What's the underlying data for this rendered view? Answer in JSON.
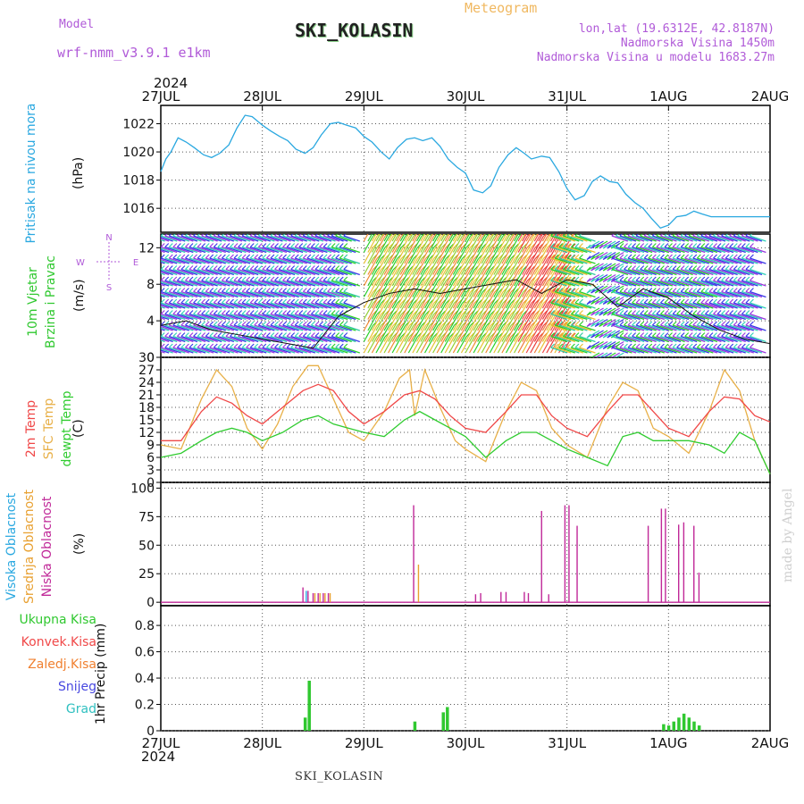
{
  "header": {
    "model_label": "Model",
    "model_name": "wrf-nmm_v3.9.1  e1km",
    "product": "Meteogram",
    "station": "SKI_KOLASIN",
    "location_line": "lon,lat (19.6312E, 42.8187N)",
    "elevation_line": "Nadmorska Visina 1450m",
    "model_elevation_line": "Nadmorska Visina u modelu 1683.27m",
    "footer_station": "SKI_KOLASIN",
    "credit": "made by Angel"
  },
  "colors": {
    "pressure": "#2aa8e0",
    "temp2m": "#f04848",
    "sfc_temp": "#e8b048",
    "dewpoint": "#30cc30",
    "high_cloud": "#2aa8e0",
    "mid_cloud": "#e8a030",
    "low_cloud": "#c02898",
    "total_precip": "#30c830",
    "conv_precip": "#f04848",
    "frz_precip": "#f08030",
    "snow": "#4848e0",
    "graupel": "#30c0c0",
    "wind_label": "#30c830"
  },
  "chart_data": [
    {
      "type": "line",
      "id": "pressure",
      "ylabel": "Pritisak na nivou mora",
      "unit": "(hPa)",
      "year": "2024",
      "date_ticks": [
        "27JUL",
        "28JUL",
        "29JUL",
        "30JUL",
        "31JUL",
        "1AUG",
        "2AUG"
      ],
      "ylim": [
        1014.3,
        1023.3
      ],
      "yticks": [
        1016,
        1018,
        1020,
        1022
      ],
      "grid": true,
      "series": [
        {
          "x": [
            0,
            0.05,
            0.1,
            0.17,
            0.25,
            0.33,
            0.42,
            0.5,
            0.58,
            0.67,
            0.75,
            0.83,
            0.9,
            1.0,
            1.08,
            1.17,
            1.25,
            1.33,
            1.42,
            1.5,
            1.58,
            1.67,
            1.75,
            1.83,
            1.92,
            2.0,
            2.08,
            2.17,
            2.25,
            2.33,
            2.42,
            2.5,
            2.58,
            2.67,
            2.75,
            2.83,
            2.92,
            3.0,
            3.08,
            3.17,
            3.25,
            3.33,
            3.42,
            3.5,
            3.58,
            3.65,
            3.75,
            3.83,
            3.92,
            4.0,
            4.08,
            4.17,
            4.25,
            4.33,
            4.42,
            4.5,
            4.58,
            4.67,
            4.75,
            4.83,
            4.92,
            5.0,
            5.08,
            5.17,
            5.25,
            5.33,
            5.42,
            5.5,
            5.58,
            5.67,
            5.75,
            5.83,
            5.92,
            6.0
          ],
          "y": [
            1018.6,
            1019.5,
            1020.0,
            1021.0,
            1020.7,
            1020.3,
            1019.8,
            1019.6,
            1019.9,
            1020.5,
            1021.7,
            1022.6,
            1022.5,
            1021.9,
            1021.5,
            1021.1,
            1020.8,
            1020.2,
            1019.9,
            1020.3,
            1021.2,
            1022.0,
            1022.1,
            1021.9,
            1021.7,
            1021.1,
            1020.7,
            1020.0,
            1019.5,
            1020.3,
            1020.9,
            1021.0,
            1020.8,
            1021.0,
            1020.4,
            1019.5,
            1018.9,
            1018.5,
            1017.3,
            1017.1,
            1017.6,
            1018.9,
            1019.8,
            1020.3,
            1019.9,
            1019.5,
            1019.7,
            1019.6,
            1018.6,
            1017.4,
            1016.6,
            1016.9,
            1017.9,
            1018.3,
            1017.9,
            1017.8,
            1017.0,
            1016.4,
            1016.0,
            1015.3,
            1014.6,
            1014.8,
            1015.4,
            1015.5,
            1015.8,
            1015.6,
            1015.4,
            1015.4,
            1015.4,
            1015.4,
            1015.4,
            1015.4,
            1015.4,
            1015.4
          ]
        }
      ]
    },
    {
      "type": "line",
      "id": "wind",
      "ylabel_line1": "10m Vjetar",
      "ylabel_line2": "Brzina i Pravac",
      "unit": "(m/s)",
      "compass": [
        "N",
        "E",
        "S",
        "W"
      ],
      "ylim": [
        0,
        13.5
      ],
      "yticks": [
        0,
        4,
        8,
        12
      ],
      "series": [
        {
          "name": "speed",
          "x": [
            0,
            0.25,
            0.5,
            0.75,
            1.0,
            1.25,
            1.5,
            1.75,
            2.0,
            2.25,
            2.5,
            2.75,
            3.0,
            3.25,
            3.5,
            3.75,
            4.0,
            4.25,
            4.5,
            4.75,
            5.0,
            5.25,
            5.5,
            5.75,
            6.0
          ],
          "y": [
            3.5,
            4.0,
            3.0,
            2.5,
            2.0,
            1.5,
            1.0,
            4.5,
            6.0,
            7.0,
            7.5,
            7.0,
            7.5,
            8.0,
            8.5,
            7.0,
            8.5,
            8.0,
            5.5,
            7.5,
            6.5,
            4.5,
            3.0,
            2.0,
            1.5
          ]
        }
      ]
    },
    {
      "type": "line",
      "id": "temperature",
      "ylabel_line1": "2m Temp",
      "ylabel_line2": "SFC Temp",
      "ylabel_line3": "dewpt Temp",
      "unit": "(C)",
      "ylim": [
        0,
        30
      ],
      "yticks": [
        0,
        3,
        6,
        9,
        12,
        15,
        18,
        21,
        24,
        27,
        30
      ],
      "series": [
        {
          "name": "2m Temp",
          "x": [
            0,
            0.2,
            0.4,
            0.55,
            0.7,
            0.85,
            1.0,
            1.2,
            1.4,
            1.55,
            1.7,
            1.85,
            2.0,
            2.2,
            2.4,
            2.55,
            2.7,
            2.85,
            3.0,
            3.2,
            3.4,
            3.55,
            3.7,
            3.85,
            4.0,
            4.2,
            4.4,
            4.55,
            4.7,
            4.85,
            5.0,
            5.2,
            5.4,
            5.55,
            5.7,
            5.85,
            6.0
          ],
          "y": [
            10,
            10,
            17,
            20.5,
            19,
            16,
            14,
            18,
            22,
            23.5,
            22,
            17,
            14,
            17,
            21,
            22,
            20,
            16,
            13,
            12,
            17,
            21,
            21,
            16,
            13,
            11,
            17,
            21,
            21,
            17,
            13,
            11,
            17,
            20.5,
            20,
            16,
            14.5
          ]
        },
        {
          "name": "SFC Temp",
          "x": [
            0,
            0.2,
            0.4,
            0.55,
            0.7,
            0.85,
            1.0,
            1.15,
            1.3,
            1.45,
            1.55,
            1.7,
            1.85,
            2.0,
            2.2,
            2.35,
            2.45,
            2.5,
            2.6,
            2.75,
            2.9,
            3.0,
            3.2,
            3.4,
            3.55,
            3.7,
            3.85,
            4.0,
            4.2,
            4.4,
            4.55,
            4.7,
            4.85,
            5.0,
            5.2,
            5.4,
            5.55,
            5.7,
            5.85,
            6.0
          ],
          "y": [
            9,
            8,
            20,
            27,
            23,
            13,
            8,
            14,
            23,
            28,
            28,
            20,
            12,
            10,
            17,
            25,
            27,
            16,
            27,
            18,
            10,
            8,
            5,
            17,
            24,
            22,
            13,
            9,
            6,
            18,
            24,
            22,
            13,
            11,
            7,
            17,
            27,
            22,
            10,
            2
          ]
        },
        {
          "name": "dewpt Temp",
          "x": [
            0,
            0.2,
            0.4,
            0.55,
            0.7,
            0.85,
            1.0,
            1.2,
            1.4,
            1.55,
            1.7,
            1.85,
            2.0,
            2.2,
            2.4,
            2.55,
            2.7,
            2.85,
            3.0,
            3.2,
            3.4,
            3.55,
            3.7,
            3.85,
            4.0,
            4.2,
            4.4,
            4.55,
            4.7,
            4.85,
            5.0,
            5.2,
            5.4,
            5.55,
            5.7,
            5.85,
            6.0
          ],
          "y": [
            6,
            7,
            10,
            12,
            13,
            12,
            10,
            12,
            15,
            16,
            14,
            13,
            12,
            11,
            15,
            17,
            15,
            13,
            11,
            6,
            10,
            12,
            12,
            10,
            8,
            6,
            4,
            11,
            12,
            10,
            10,
            10,
            9,
            7,
            12,
            10,
            2
          ]
        }
      ]
    },
    {
      "type": "bar",
      "id": "clouds",
      "ylabel_line1": "Visoka Oblacnost",
      "ylabel_line2": "Srednja Oblacnost",
      "ylabel_line3": "Niska Oblacnost",
      "unit": "(%)",
      "ylim": [
        -3,
        105
      ],
      "yticks": [
        0,
        25,
        50,
        75,
        100
      ],
      "series": [
        {
          "name": "low",
          "x": [
            1.4,
            1.45,
            1.5,
            1.55,
            1.6,
            1.65,
            2.49,
            3.1,
            3.15,
            3.35,
            3.4,
            3.58,
            3.62,
            3.75,
            3.82,
            3.98,
            4.02,
            4.1,
            4.8,
            4.93,
            4.97,
            5.1,
            5.15,
            5.25,
            5.3
          ],
          "y": [
            13,
            10,
            8,
            8,
            8,
            8,
            85,
            7,
            8,
            9,
            9,
            9,
            8,
            80,
            7,
            85,
            85,
            67,
            67,
            82,
            82,
            68,
            70,
            67,
            26
          ]
        },
        {
          "name": "mid",
          "x": [
            1.5,
            1.55,
            1.6,
            1.65,
            2.52
          ],
          "y": [
            8,
            8,
            8,
            8,
            33
          ]
        },
        {
          "name": "high",
          "x": [
            1.45
          ],
          "y": [
            10
          ]
        }
      ]
    },
    {
      "type": "bar",
      "id": "precip",
      "unit": "1hr Precip (mm)",
      "legend": [
        "Ukupna Kisa",
        "Konvek.Kisa",
        "Zaledj.Kisa",
        "Snijeg",
        "Grad"
      ],
      "ylim": [
        0,
        0.95
      ],
      "yticks": [
        0,
        0.2,
        0.4,
        0.6,
        0.8
      ],
      "ytick_labels": [
        "0",
        "0.2",
        "0.4",
        "0.6",
        "0.8"
      ],
      "series": [
        {
          "name": "Ukupna Kisa",
          "x": [
            1.42,
            1.46,
            2.5,
            2.78,
            2.82,
            4.95,
            5.0,
            5.05,
            5.1,
            5.15,
            5.2,
            5.25,
            5.3
          ],
          "y": [
            0.1,
            0.38,
            0.07,
            0.14,
            0.18,
            0.05,
            0.04,
            0.07,
            0.1,
            0.13,
            0.1,
            0.07,
            0.04
          ]
        }
      ]
    }
  ]
}
